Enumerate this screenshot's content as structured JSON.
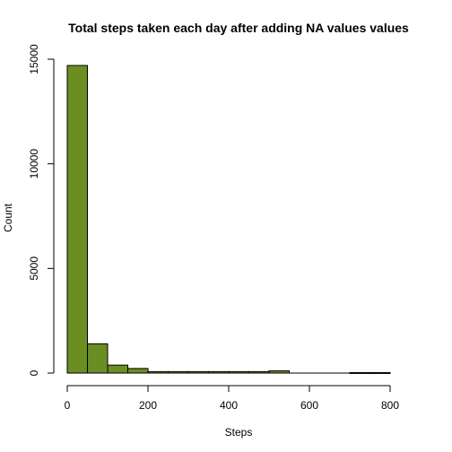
{
  "chart_data": {
    "type": "bar",
    "title": "Total steps taken each day after adding NA values values",
    "xlabel": "Steps",
    "ylabel": "Count",
    "xlim": [
      0,
      850
    ],
    "ylim": [
      0,
      15000
    ],
    "x_ticks": [
      0,
      200,
      400,
      600,
      800
    ],
    "y_ticks": [
      0,
      5000,
      10000,
      15000
    ],
    "bin_width": 50,
    "bins": [
      {
        "start": 0,
        "end": 50,
        "count": 14700
      },
      {
        "start": 50,
        "end": 100,
        "count": 1400
      },
      {
        "start": 100,
        "end": 150,
        "count": 380
      },
      {
        "start": 150,
        "end": 200,
        "count": 220
      },
      {
        "start": 200,
        "end": 250,
        "count": 70
      },
      {
        "start": 250,
        "end": 300,
        "count": 70
      },
      {
        "start": 300,
        "end": 350,
        "count": 70
      },
      {
        "start": 350,
        "end": 400,
        "count": 70
      },
      {
        "start": 400,
        "end": 450,
        "count": 70
      },
      {
        "start": 450,
        "end": 500,
        "count": 70
      },
      {
        "start": 500,
        "end": 550,
        "count": 110
      },
      {
        "start": 550,
        "end": 600,
        "count": 0
      },
      {
        "start": 600,
        "end": 650,
        "count": 0
      },
      {
        "start": 650,
        "end": 700,
        "count": 0
      },
      {
        "start": 700,
        "end": 750,
        "count": 25
      },
      {
        "start": 750,
        "end": 800,
        "count": 25
      }
    ],
    "bar_color": "#6b8e23",
    "grid": false,
    "legend": "none"
  }
}
